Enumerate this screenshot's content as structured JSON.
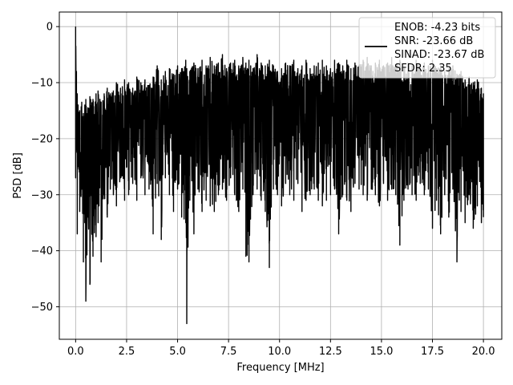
{
  "chart_data": {
    "type": "line",
    "title": "",
    "xlabel": "Frequency [MHz]",
    "ylabel": "PSD [dB]",
    "xlim": [
      -0.8,
      20.9
    ],
    "ylim": [
      -55.8,
      2.6
    ],
    "xticks": [
      0.0,
      2.5,
      5.0,
      7.5,
      10.0,
      12.5,
      15.0,
      17.5,
      20.0
    ],
    "xtick_labels": [
      "0.0",
      "2.5",
      "5.0",
      "7.5",
      "10.0",
      "12.5",
      "15.0",
      "17.5",
      "20.0"
    ],
    "yticks": [
      0,
      -10,
      -20,
      -30,
      -40,
      -50
    ],
    "ytick_labels": [
      "0",
      "−10",
      "−20",
      "−30",
      "−40",
      "−50"
    ],
    "grid": true,
    "legend_position": "top-right",
    "line_color": "#000000",
    "series": [
      {
        "legend_lines": [
          "ENOB: -4.23 bits",
          "SNR: -23.66 dB",
          "SINAD: -23.67 dB",
          "SFDR: 2.35"
        ],
        "x": [
          0.0,
          0.04,
          0.08,
          0.12,
          0.2,
          0.3,
          0.38,
          0.45,
          0.5,
          0.6,
          0.7,
          0.85,
          1.0,
          1.1,
          1.25,
          1.4,
          1.55,
          1.7,
          1.85,
          2.0,
          2.2,
          2.4,
          2.6,
          2.8,
          3.0,
          3.2,
          3.4,
          3.6,
          3.8,
          4.0,
          4.2,
          4.4,
          4.6,
          4.8,
          5.0,
          5.2,
          5.4,
          5.45,
          5.6,
          5.8,
          6.0,
          6.2,
          6.4,
          6.6,
          6.8,
          7.0,
          7.2,
          7.4,
          7.6,
          7.8,
          8.0,
          8.2,
          8.35,
          8.5,
          8.7,
          8.9,
          9.1,
          9.3,
          9.5,
          9.7,
          9.9,
          10.1,
          10.3,
          10.5,
          10.7,
          10.9,
          11.1,
          11.3,
          11.5,
          11.7,
          11.9,
          12.1,
          12.3,
          12.5,
          12.7,
          12.9,
          13.1,
          13.3,
          13.5,
          13.7,
          13.9,
          14.1,
          14.3,
          14.5,
          14.7,
          14.9,
          15.1,
          15.3,
          15.5,
          15.7,
          15.9,
          16.1,
          16.3,
          16.5,
          16.7,
          16.9,
          17.1,
          17.3,
          17.5,
          17.7,
          17.9,
          18.1,
          18.3,
          18.5,
          18.7,
          18.9,
          19.1,
          19.3,
          19.5,
          19.7,
          19.9,
          20.0
        ],
        "hi": [
          0.0,
          -8.0,
          -12.0,
          -14.0,
          -15.0,
          -13.5,
          -15.5,
          -14.0,
          -13.0,
          -14.5,
          -12.5,
          -13.0,
          -12.0,
          -11.5,
          -13.5,
          -12.0,
          -11.0,
          -12.0,
          -11.5,
          -10.0,
          -11.0,
          -9.5,
          -10.0,
          -11.0,
          -9.0,
          -10.0,
          -9.5,
          -10.5,
          -9.0,
          -7.0,
          -9.5,
          -8.0,
          -7.5,
          -8.5,
          -7.0,
          -7.5,
          -6.0,
          -7.5,
          -8.0,
          -6.5,
          -7.5,
          -6.0,
          -7.0,
          -5.5,
          -7.0,
          -6.5,
          -5.0,
          -7.5,
          -6.5,
          -6.0,
          -7.0,
          -5.5,
          -6.5,
          -6.0,
          -7.5,
          -5.0,
          -6.5,
          -7.0,
          -6.0,
          -7.0,
          -8.0,
          -7.5,
          -6.5,
          -7.0,
          -6.0,
          -7.5,
          -7.0,
          -6.0,
          -7.5,
          -7.0,
          -6.5,
          -6.0,
          -7.0,
          -7.5,
          -6.0,
          -6.5,
          -7.0,
          -6.0,
          -7.5,
          -6.5,
          -7.0,
          -6.0,
          -5.5,
          -7.0,
          -6.5,
          -6.0,
          -7.0,
          -6.5,
          -5.5,
          -7.0,
          -6.0,
          -7.5,
          -6.5,
          -7.0,
          -6.0,
          -7.5,
          -6.5,
          -7.0,
          -6.0,
          -7.5,
          -7.0,
          -8.0,
          -7.5,
          -7.0,
          -8.5,
          -8.0,
          -9.5,
          -9.0,
          -10.0,
          -9.5,
          -11.0,
          -12.0
        ],
        "lo": [
          -27.0,
          -22.0,
          -37.0,
          -25.0,
          -33.0,
          -29.0,
          -42.0,
          -35.0,
          -49.0,
          -34.0,
          -46.0,
          -41.0,
          -37.5,
          -35.0,
          -42.0,
          -30.0,
          -34.0,
          -29.0,
          -30.0,
          -32.0,
          -27.0,
          -31.0,
          -30.0,
          -28.0,
          -31.0,
          -27.0,
          -30.0,
          -29.0,
          -37.0,
          -28.0,
          -38.0,
          -27.0,
          -30.0,
          -33.0,
          -29.0,
          -34.0,
          -35.0,
          -53.0,
          -31.0,
          -37.0,
          -29.0,
          -33.0,
          -31.0,
          -32.0,
          -33.0,
          -30.0,
          -29.0,
          -31.0,
          -27.0,
          -30.0,
          -33.0,
          -29.0,
          -41.0,
          -42.0,
          -30.0,
          -29.0,
          -31.0,
          -33.0,
          -43.0,
          -29.0,
          -30.0,
          -32.0,
          -28.0,
          -30.0,
          -31.0,
          -28.0,
          -33.0,
          -31.0,
          -30.0,
          -29.0,
          -31.0,
          -32.0,
          -31.0,
          -30.0,
          -29.0,
          -37.0,
          -30.0,
          -31.0,
          -33.0,
          -28.0,
          -29.0,
          -30.0,
          -31.0,
          -29.0,
          -30.0,
          -32.0,
          -28.0,
          -31.0,
          -29.0,
          -30.0,
          -39.0,
          -31.0,
          -29.0,
          -30.0,
          -31.0,
          -28.0,
          -30.0,
          -29.0,
          -36.0,
          -31.0,
          -37.0,
          -30.0,
          -34.0,
          -29.0,
          -42.0,
          -33.0,
          -35.0,
          -30.0,
          -36.0,
          -32.0,
          -35.0,
          -34.0
        ]
      }
    ]
  }
}
